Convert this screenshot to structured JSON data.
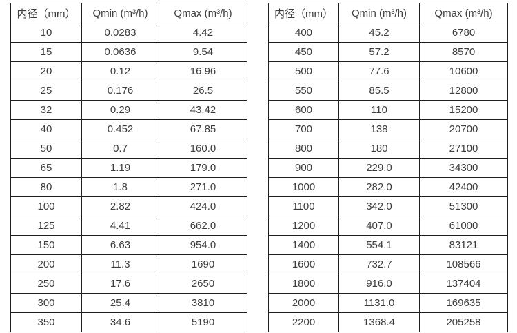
{
  "colors": {
    "background": "#ffffff",
    "border": "#1f1f1f",
    "text": "#3d3d3d"
  },
  "chart_data": [
    {
      "type": "table",
      "title": "",
      "columns": [
        "内径（mm）",
        "Qmin (m³/h)",
        "Qmax (m³/h)"
      ],
      "rows": [
        [
          "10",
          "0.0283",
          "4.42"
        ],
        [
          "15",
          "0.0636",
          "9.54"
        ],
        [
          "20",
          "0.12",
          "16.96"
        ],
        [
          "25",
          "0.176",
          "26.5"
        ],
        [
          "32",
          "0.29",
          "43.42"
        ],
        [
          "40",
          "0.452",
          "67.85"
        ],
        [
          "50",
          "0.7",
          "160.0"
        ],
        [
          "65",
          "1.19",
          "179.0"
        ],
        [
          "80",
          "1.8",
          "271.0"
        ],
        [
          "100",
          "2.82",
          "424.0"
        ],
        [
          "125",
          "4.41",
          "662.0"
        ],
        [
          "150",
          "6.63",
          "954.0"
        ],
        [
          "200",
          "11.3",
          "1690"
        ],
        [
          "250",
          "17.6",
          "2650"
        ],
        [
          "300",
          "25.4",
          "3810"
        ],
        [
          "350",
          "34.6",
          "5190"
        ]
      ]
    },
    {
      "type": "table",
      "title": "",
      "columns": [
        "内径（mm）",
        "Qmin (m³/h)",
        "Qmax (m³/h)"
      ],
      "rows": [
        [
          "400",
          "45.2",
          "6780"
        ],
        [
          "450",
          "57.2",
          "8570"
        ],
        [
          "500",
          "77.6",
          "10600"
        ],
        [
          "550",
          "85.5",
          "12800"
        ],
        [
          "600",
          "110",
          "15200"
        ],
        [
          "700",
          "138",
          "20700"
        ],
        [
          "800",
          "180",
          "27100"
        ],
        [
          "900",
          "229.0",
          "34300"
        ],
        [
          "1000",
          "282.0",
          "42400"
        ],
        [
          "1100",
          "342.0",
          "51300"
        ],
        [
          "1200",
          "407.0",
          "61000"
        ],
        [
          "1400",
          "554.1",
          "83121"
        ],
        [
          "1600",
          "732.7",
          "108566"
        ],
        [
          "1800",
          "916.0",
          "137404"
        ],
        [
          "2000",
          "1131.0",
          "169635"
        ],
        [
          "2200",
          "1368.4",
          "205258"
        ]
      ]
    }
  ]
}
